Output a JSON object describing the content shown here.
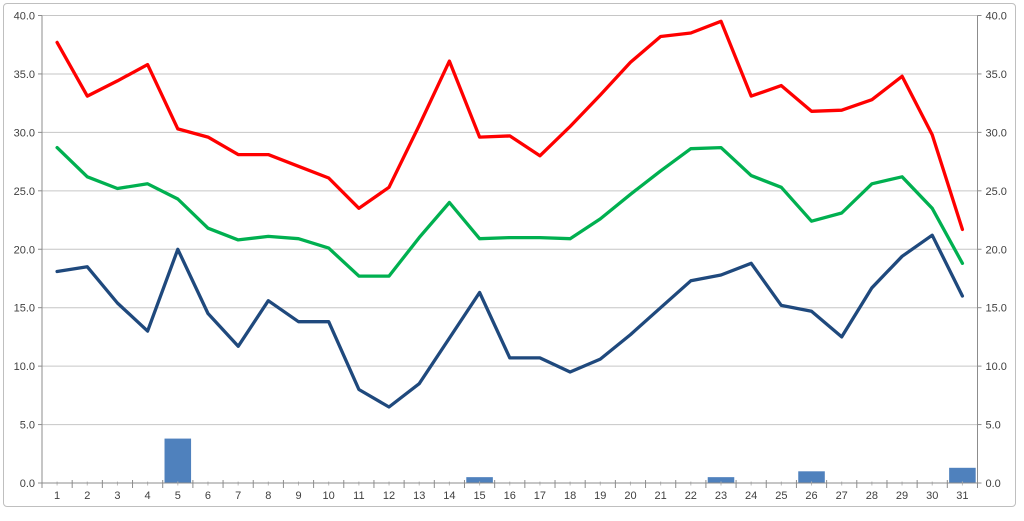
{
  "chart_data": {
    "type": "combo-line-bar",
    "title": "",
    "xlabel": "",
    "ylabel": "",
    "x": [
      1,
      2,
      3,
      4,
      5,
      6,
      7,
      8,
      9,
      10,
      11,
      12,
      13,
      14,
      15,
      16,
      17,
      18,
      19,
      20,
      21,
      22,
      23,
      24,
      25,
      26,
      27,
      28,
      29,
      30,
      31
    ],
    "series": [
      {
        "name": "blue-bars",
        "type": "bar",
        "color": "#4f81bd",
        "values": [
          0,
          0,
          0,
          0,
          3.8,
          0,
          0,
          0,
          0,
          0,
          0,
          0,
          0,
          0,
          0.5,
          0,
          0,
          0,
          0,
          0,
          0,
          0,
          0.5,
          0,
          0,
          1.0,
          0,
          0,
          0,
          0,
          1.3
        ]
      },
      {
        "name": "dark-blue-line",
        "type": "line",
        "color": "#1f497d",
        "values": [
          18.1,
          18.5,
          15.4,
          13.0,
          20.0,
          14.5,
          11.7,
          15.6,
          13.8,
          13.8,
          8.0,
          6.5,
          8.5,
          12.4,
          16.3,
          10.7,
          10.7,
          9.5,
          10.6,
          12.7,
          15.0,
          17.3,
          17.8,
          18.8,
          15.2,
          14.7,
          12.5,
          16.7,
          19.4,
          21.2,
          16.0
        ]
      },
      {
        "name": "green-line",
        "type": "line",
        "color": "#00b050",
        "values": [
          28.7,
          26.2,
          25.2,
          25.6,
          24.3,
          21.8,
          20.8,
          21.1,
          20.9,
          20.1,
          17.7,
          17.7,
          21.0,
          24.0,
          20.9,
          21.0,
          21.0,
          20.9,
          22.6,
          24.7,
          26.7,
          28.6,
          28.7,
          26.3,
          25.3,
          22.4,
          23.1,
          25.6,
          26.2,
          23.5,
          18.8
        ]
      },
      {
        "name": "red-line",
        "type": "line",
        "color": "#ff0000",
        "values": [
          37.7,
          33.1,
          34.4,
          35.8,
          30.3,
          29.6,
          28.1,
          28.1,
          27.1,
          26.1,
          23.5,
          25.3,
          30.6,
          36.1,
          29.6,
          29.7,
          28.0,
          30.5,
          33.2,
          36.0,
          38.2,
          38.5,
          39.5,
          33.1,
          34.0,
          31.8,
          31.9,
          32.8,
          34.8,
          29.8,
          21.7
        ]
      }
    ],
    "ylim": [
      0,
      40
    ],
    "ytick_step": 5,
    "ytick_labels_left": [
      "0.0",
      "5.0",
      "10.0",
      "15.0",
      "20.0",
      "25.0",
      "30.0",
      "35.0",
      "40.0"
    ],
    "ytick_labels_right": [
      "0.0",
      "5.0",
      "10.0",
      "15.0",
      "20.0",
      "25.0",
      "30.0",
      "35.0",
      "40.0"
    ],
    "xtick_labels": [
      "1",
      "2",
      "3",
      "4",
      "5",
      "6",
      "7",
      "8",
      "9",
      "10",
      "11",
      "12",
      "13",
      "14",
      "15",
      "16",
      "17",
      "18",
      "19",
      "20",
      "21",
      "22",
      "23",
      "24",
      "25",
      "26",
      "27",
      "28",
      "29",
      "30",
      "31"
    ],
    "grid": true,
    "legend": "none",
    "colors": {
      "gridline": "#c6c6c6",
      "axis_line": "#8c8c8c",
      "tick": "#8c8c8c",
      "minor_tick": "#bdbdbd",
      "label_text": "#404040",
      "frame_border": "#bfbfbf",
      "background": "#ffffff"
    }
  }
}
